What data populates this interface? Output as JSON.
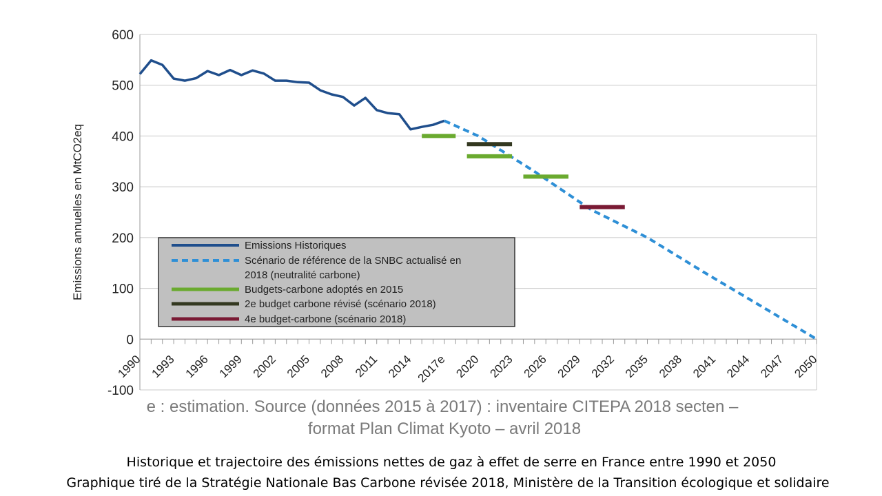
{
  "chart_data": {
    "type": "line",
    "ylabel": "Emissions annuelles en MtCO2eq",
    "xlabel": "",
    "ylim": [
      -100,
      600
    ],
    "yticks": [
      "600",
      "500",
      "400",
      "300",
      "200",
      "100",
      "0",
      "-100"
    ],
    "xlim": [
      1990,
      2050
    ],
    "xticks": [
      "1990",
      "1993",
      "1996",
      "1999",
      "2002",
      "2005",
      "2008",
      "2011",
      "2014",
      "2017e",
      "2020",
      "2023",
      "2026",
      "2029",
      "2032",
      "2035",
      "2038",
      "2041",
      "2044",
      "2047",
      "2050"
    ],
    "grid": true,
    "legend_position": "bottom-left",
    "series": [
      {
        "name": "Emissions Historiques",
        "style": "solid",
        "color": "#1f4e8c",
        "x": [
          1990,
          1991,
          1992,
          1993,
          1994,
          1995,
          1996,
          1997,
          1998,
          1999,
          2000,
          2001,
          2002,
          2003,
          2004,
          2005,
          2006,
          2007,
          2008,
          2009,
          2010,
          2011,
          2012,
          2013,
          2014,
          2015,
          2016,
          2017
        ],
        "y": [
          522,
          549,
          540,
          513,
          509,
          514,
          528,
          520,
          530,
          520,
          529,
          523,
          509,
          509,
          506,
          505,
          490,
          482,
          477,
          460,
          475,
          451,
          445,
          443,
          413,
          418,
          422,
          430
        ]
      },
      {
        "name": "Scénario de référence de la SNBC actualisé en 2018 (neutralité carbone)",
        "style": "dashed",
        "color": "#2e8fd6",
        "x": [
          2017,
          2020,
          2025,
          2030,
          2035,
          2040,
          2045,
          2050
        ],
        "y": [
          430,
          400,
          330,
          255,
          200,
          132,
          66,
          0
        ]
      },
      {
        "name": "Budgets-carbone adoptés en 2015",
        "style": "segments",
        "color": "#6aaa2f",
        "segments": [
          {
            "x": [
              2015,
              2018
            ],
            "y": 400
          },
          {
            "x": [
              2019,
              2023
            ],
            "y": 360
          },
          {
            "x": [
              2024,
              2028
            ],
            "y": 320
          }
        ]
      },
      {
        "name": "2e budget carbone révisé (scénario 2018)",
        "style": "segments",
        "color": "#333820",
        "segments": [
          {
            "x": [
              2019,
              2023
            ],
            "y": 384
          }
        ]
      },
      {
        "name": "4e budget-carbone (scénario 2018)",
        "style": "segments",
        "color": "#7a1a34",
        "segments": [
          {
            "x": [
              2029,
              2033
            ],
            "y": 260
          }
        ]
      }
    ]
  },
  "legend_lines": [
    [
      "Emissions Historiques"
    ],
    [
      "Scénario de référence de la SNBC actualisé en",
      "2018 (neutralité carbone)"
    ],
    [
      "Budgets-carbone adoptés en 2015"
    ],
    [
      "2e budget carbone révisé (scénario 2018)"
    ],
    [
      "4e budget-carbone (scénario 2018)"
    ]
  ],
  "source_note": {
    "line1": "e : estimation. Source (données 2015 à 2017) : inventaire CITEPA 2018 secten –",
    "line2": "format Plan Climat Kyoto – avril 2018"
  },
  "caption": {
    "line1": "Historique et trajectoire des émissions nettes de gaz à effet de serre en France entre 1990 et 2050",
    "line2": "Graphique tiré de la Stratégie Nationale Bas Carbone révisée 2018, Ministère de la Transition écologique et solidaire"
  },
  "colors": {
    "grid": "#c8c8c8",
    "axis": "#999999",
    "legend_bg": "#c0c0c0",
    "legend_border": "#333333"
  }
}
